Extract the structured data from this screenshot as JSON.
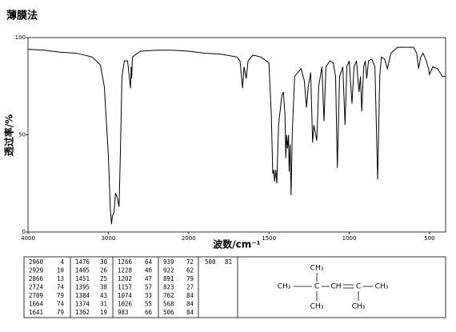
{
  "chart_data": {
    "type": "line",
    "title": "薄膜法",
    "xlabel": "波数/cm⁻¹",
    "ylabel": "透过率/%",
    "xlim": [
      4000,
      400
    ],
    "xscale_break": 2000,
    "xticks": [
      4000,
      3000,
      2000,
      1500,
      1000,
      500
    ],
    "ylim": [
      0,
      100
    ],
    "yticks": [
      0,
      50,
      100
    ],
    "color": "#000000",
    "x": [
      4000,
      3800,
      3600,
      3400,
      3200,
      3100,
      3050,
      3000,
      2975,
      2960,
      2950,
      2929,
      2910,
      2890,
      2866,
      2850,
      2830,
      2800,
      2760,
      2724,
      2715,
      2709,
      2700,
      2600,
      2400,
      2200,
      2000,
      1900,
      1800,
      1700,
      1680,
      1664,
      1655,
      1641,
      1630,
      1600,
      1550,
      1500,
      1485,
      1476,
      1470,
      1465,
      1458,
      1451,
      1440,
      1420,
      1410,
      1400,
      1395,
      1390,
      1384,
      1378,
      1374,
      1368,
      1362,
      1355,
      1340,
      1300,
      1280,
      1266,
      1255,
      1240,
      1228,
      1220,
      1202,
      1190,
      1170,
      1157,
      1145,
      1120,
      1100,
      1085,
      1074,
      1060,
      1040,
      1026,
      1015,
      1000,
      983,
      970,
      955,
      939,
      930,
      922,
      910,
      900,
      891,
      880,
      860,
      840,
      823,
      810,
      800,
      780,
      762,
      740,
      700,
      600,
      580,
      568,
      555,
      540,
      520,
      506,
      500,
      480,
      450,
      420,
      400
    ],
    "values": [
      94,
      93.5,
      92.5,
      92,
      90,
      86,
      75,
      40,
      12,
      4,
      8,
      10,
      20,
      18,
      13,
      40,
      80,
      88,
      88,
      74,
      85,
      79,
      90,
      93,
      93.5,
      93.5,
      93,
      92,
      91.5,
      90,
      88,
      74,
      85,
      79,
      88,
      91,
      90,
      87,
      60,
      30,
      32,
      26,
      32,
      25,
      55,
      70,
      72,
      60,
      38,
      50,
      43,
      50,
      31,
      45,
      19,
      50,
      80,
      84,
      78,
      64,
      75,
      82,
      46,
      55,
      47,
      75,
      85,
      57,
      85,
      88,
      87,
      80,
      33,
      80,
      85,
      55,
      85,
      88,
      66,
      85,
      88,
      72,
      80,
      62,
      85,
      88,
      79,
      88,
      89,
      85,
      27,
      80,
      90,
      89,
      84,
      92,
      95,
      95,
      92,
      84,
      90,
      92,
      88,
      84,
      81,
      85,
      84,
      80,
      80
    ]
  },
  "peaks": [
    [
      2960,
      4
    ],
    [
      2929,
      10
    ],
    [
      2866,
      13
    ],
    [
      2724,
      74
    ],
    [
      2709,
      79
    ],
    [
      1664,
      74
    ],
    [
      1641,
      79
    ],
    [
      1476,
      30
    ],
    [
      1465,
      26
    ],
    [
      1451,
      25
    ],
    [
      1395,
      38
    ],
    [
      1384,
      43
    ],
    [
      1374,
      31
    ],
    [
      1362,
      19
    ],
    [
      1266,
      64
    ],
    [
      1228,
      46
    ],
    [
      1202,
      47
    ],
    [
      1157,
      57
    ],
    [
      1074,
      33
    ],
    [
      1026,
      55
    ],
    [
      983,
      66
    ],
    [
      939,
      72
    ],
    [
      922,
      62
    ],
    [
      891,
      79
    ],
    [
      823,
      27
    ],
    [
      762,
      84
    ],
    [
      568,
      84
    ],
    [
      506,
      84
    ],
    [
      500,
      81
    ]
  ],
  "structure": {
    "atoms": [
      "CH₃",
      "C",
      "CH",
      "C",
      "CH₃",
      "CH₃",
      "CH₃",
      "CH₃"
    ]
  }
}
